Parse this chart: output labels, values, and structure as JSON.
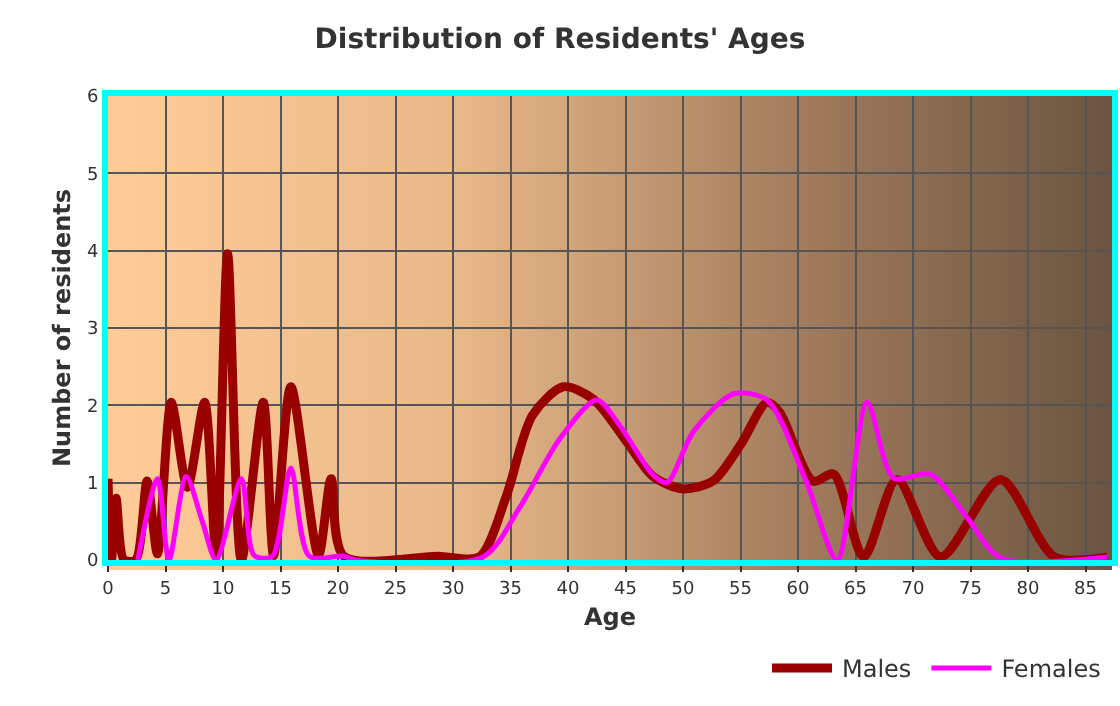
{
  "chart_data": {
    "type": "line",
    "title": "Distribution of Residents' Ages",
    "xlabel": "Age",
    "ylabel": "Number of residents",
    "xlim": [
      0,
      87.3
    ],
    "xticks": [
      0,
      5,
      10,
      15,
      20,
      25,
      30,
      35,
      40,
      45,
      50,
      55,
      60,
      65,
      70,
      75,
      80,
      85
    ],
    "ylim": [
      0,
      6
    ],
    "yticks": [
      0,
      1,
      2,
      3,
      4,
      5,
      6
    ],
    "grid": true,
    "legend": "bottom right",
    "marker": "none",
    "line_style": "solid",
    "series": [
      {
        "name": "Males",
        "color": "#990000",
        "x": [
          0,
          0.3,
          0.7,
          1.4,
          2.4,
          3.4,
          4.3,
          5.5,
          6.9,
          8.4,
          9.4,
          10.4,
          11.6,
          13.5,
          14.4,
          15.9,
          18.3,
          19.4,
          20.5,
          28.7,
          32.3,
          34.6,
          36.9,
          39.6,
          42.2,
          45.1,
          47.4,
          50,
          52.6,
          55,
          57.3,
          58.4,
          61.3,
          63.1,
          65.7,
          68.6,
          72.4,
          77.6,
          82.3,
          86.9
        ],
        "values": [
          1.05,
          0,
          0.8,
          0,
          0,
          1.02,
          0.08,
          2.04,
          0.94,
          2.04,
          0.06,
          3.96,
          0,
          2.04,
          0.06,
          2.24,
          0.06,
          1.05,
          0.05,
          0.05,
          0.04,
          0.81,
          1.87,
          2.24,
          2.08,
          1.53,
          1.08,
          0.92,
          1.02,
          1.49,
          2.04,
          1.91,
          1.02,
          1.11,
          0.04,
          1.04,
          0.04,
          1.04,
          0.04,
          0.04
        ]
      },
      {
        "name": "Females",
        "color": "#ff00ff",
        "x": [
          2.6,
          4.3,
          5.3,
          6.8,
          8.2,
          9.4,
          11.6,
          12.7,
          14.3,
          15.9,
          17.5,
          20.5,
          21.5,
          32.6,
          35.8,
          39.3,
          42.5,
          44.5,
          47.4,
          48.6,
          50.9,
          54.4,
          57.3,
          60.7,
          63.4,
          66,
          68.3,
          71.5,
          74.7,
          77.6,
          86.9
        ],
        "values": [
          0,
          1.05,
          0,
          1.08,
          0.5,
          0,
          1.05,
          0.06,
          0.05,
          1.19,
          0.05,
          0.05,
          0,
          0.04,
          0.68,
          1.57,
          2.07,
          1.74,
          1.1,
          1.0,
          1.66,
          2.15,
          2.07,
          1.02,
          0,
          2.04,
          1.06,
          1.11,
          0.55,
          0.03,
          0.04
        ]
      }
    ]
  }
}
